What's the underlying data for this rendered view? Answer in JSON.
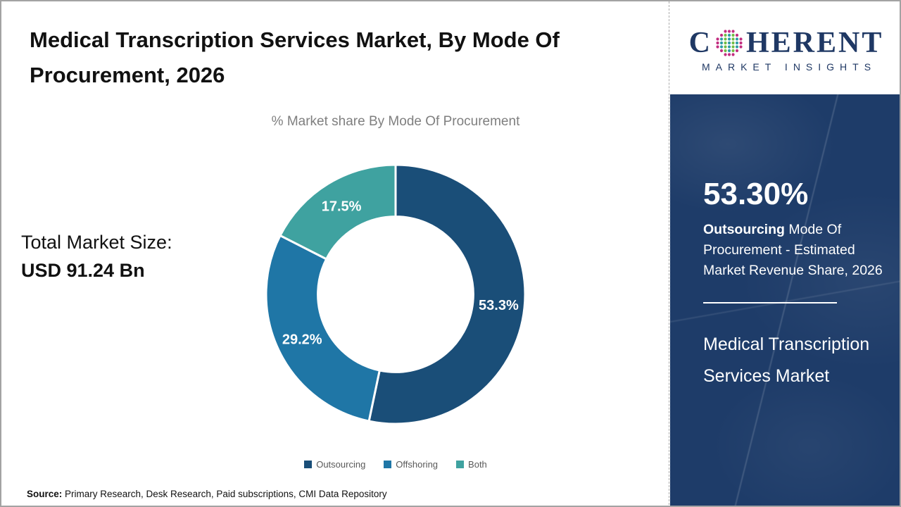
{
  "page": {
    "title": "Medical Transcription Services Market, By Mode Of Procurement, 2026",
    "subtitle": "% Market share By Mode Of Procurement",
    "total_market_label": "Total Market Size:",
    "total_market_value": "USD 91.24 Bn",
    "source_label": "Source:",
    "source_text": " Primary Research, Desk Research, Paid subscriptions, CMI Data Repository"
  },
  "chart_data": {
    "type": "pie",
    "donut": true,
    "title": "% Market share By Mode Of Procurement",
    "categories": [
      "Outsourcing",
      "Offshoring",
      "Both"
    ],
    "values": [
      53.3,
      29.2,
      17.5
    ],
    "labels": [
      "53.3%",
      "29.2%",
      "17.5%"
    ],
    "colors": [
      "#1a4e78",
      "#1f76a6",
      "#3fa2a0"
    ],
    "start_angle_deg": 0,
    "inner_radius_ratio": 0.6,
    "legend_position": "bottom",
    "total_market_size": "USD 91.24 Bn"
  },
  "branding": {
    "name_first_letter": "C",
    "name_rest": "HERENT",
    "tagline": "MARKET INSIGHTS",
    "navy": "#1f3864",
    "globe_colors": {
      "outer": "#c22e80",
      "teal": "#2e9ca6",
      "green": "#72bc44"
    }
  },
  "sidebar": {
    "stat_value": "53.30%",
    "stat_bold": "Outsourcing",
    "stat_rest": " Mode Of Procurement - Estimated Market Revenue Share, 2026",
    "market_name": "Medical Transcription Services Market",
    "panel_color": "#1e3c69"
  }
}
